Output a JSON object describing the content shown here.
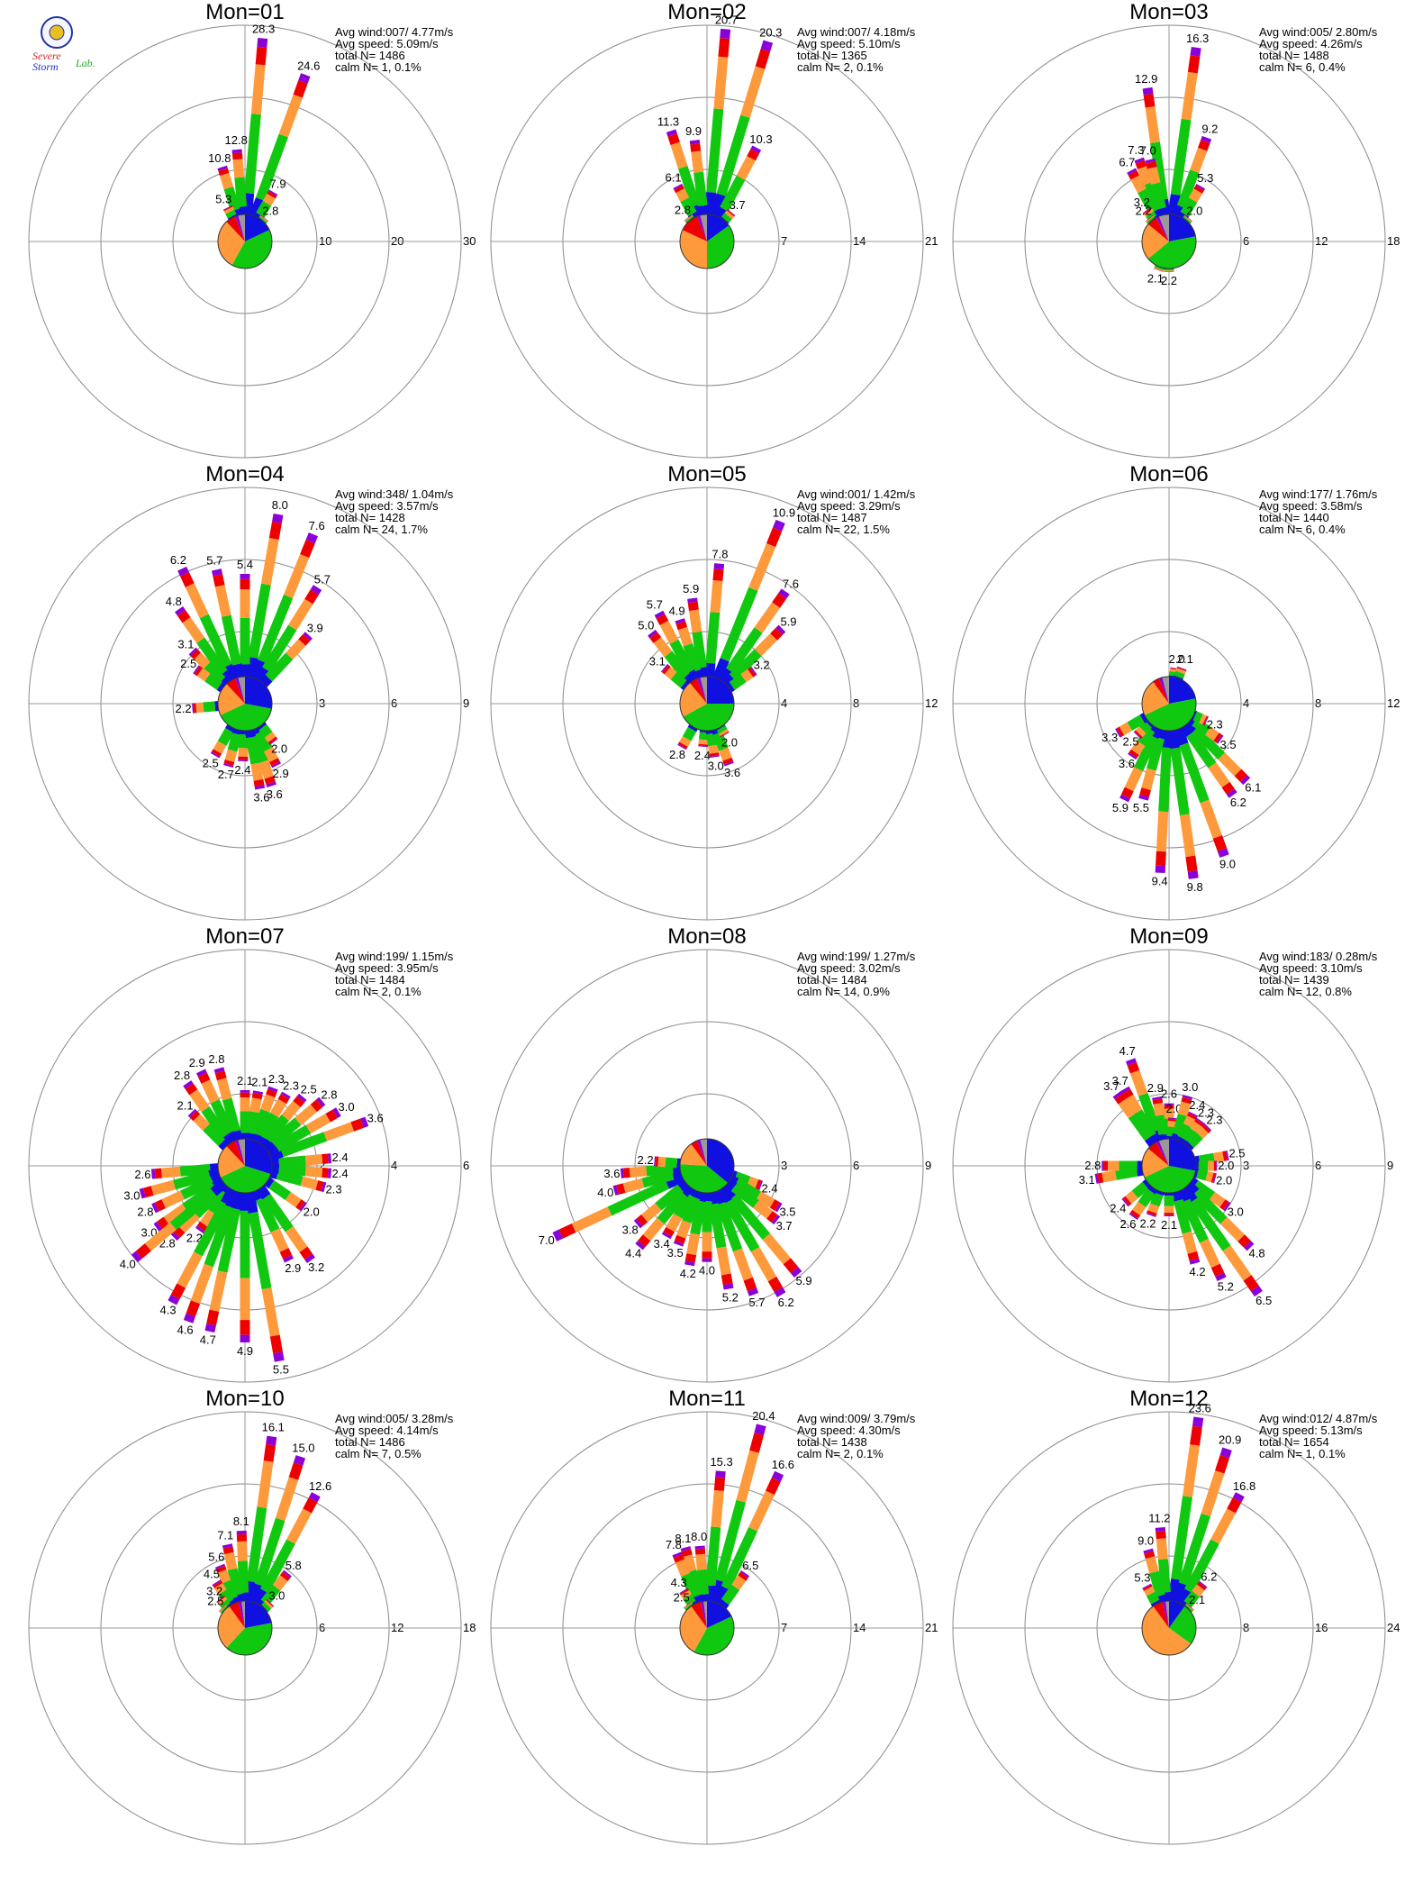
{
  "logo": {
    "name": "severe-storm-lab-logo",
    "text_severe": "Severe",
    "text_storm": "Storm",
    "text_lab": "Lab."
  },
  "colors": {
    "circle": "#8a8a8a",
    "axis": "#9a9a9a",
    "speed_bins": [
      "#1010e0",
      "#10c810",
      "#ff9a3c",
      "#ee0000",
      "#8c00d8"
    ],
    "pie": [
      "#1010e0",
      "#10c810",
      "#ff9a3c",
      "#ee0000",
      "#8c00d8",
      "#999999"
    ]
  },
  "chart_data": [
    {
      "type": "wind-rose",
      "title": "Mon=01",
      "stats": [
        "Avg wind:007/ 4.77m/s",
        "Avg speed: 5.09m/s",
        "total N=      1486",
        "calm N=    1,   0.1%"
      ],
      "rings": [
        10,
        20,
        30
      ],
      "tick_labels": [
        "10",
        "20",
        "30"
      ],
      "petals": [
        {
          "dir": 5,
          "value": 28.3
        },
        {
          "dir": 20,
          "value": 24.6
        },
        {
          "dir": -5,
          "value": 12.8
        },
        {
          "dir": -17,
          "value": 10.8
        },
        {
          "dir": -27,
          "value": 5.3
        },
        {
          "dir": 30,
          "value": 7.9
        },
        {
          "dir": 40,
          "value": 2.8
        }
      ],
      "pie": [
        18,
        40,
        30,
        6,
        2,
        4
      ]
    },
    {
      "type": "wind-rose",
      "title": "Mon=02",
      "stats": [
        "Avg wind:007/ 4.18m/s",
        "Avg speed: 5.10m/s",
        "total N=      1365",
        "calm N=    2,   0.1%"
      ],
      "rings": [
        7,
        14,
        21
      ],
      "tick_labels": [
        "7",
        "14",
        "21"
      ],
      "petals": [
        {
          "dir": 5,
          "value": 20.7
        },
        {
          "dir": 17,
          "value": 20.3
        },
        {
          "dir": 28,
          "value": 10.3
        },
        {
          "dir": -18,
          "value": 11.3
        },
        {
          "dir": -7,
          "value": 9.9
        },
        {
          "dir": -28,
          "value": 6.1
        },
        {
          "dir": -38,
          "value": 2.8
        },
        {
          "dir": 40,
          "value": 3.7
        }
      ],
      "pie": [
        15,
        35,
        32,
        12,
        2,
        4
      ]
    },
    {
      "type": "wind-rose",
      "title": "Mon=03",
      "stats": [
        "Avg wind:005/ 2.80m/s",
        "Avg speed: 4.26m/s",
        "total N=      1488",
        "calm N=    6,   0.4%"
      ],
      "rings": [
        6,
        12,
        18
      ],
      "tick_labels": [
        "6",
        "12",
        "18"
      ],
      "petals": [
        {
          "dir": 8,
          "value": 16.3
        },
        {
          "dir": -8,
          "value": 12.9
        },
        {
          "dir": -20,
          "value": 7.3
        },
        {
          "dir": -13,
          "value": 7.0
        },
        {
          "dir": -28,
          "value": 6.7
        },
        {
          "dir": 20,
          "value": 9.2
        },
        {
          "dir": 30,
          "value": 5.3
        },
        {
          "dir": 40,
          "value": 2.0
        },
        {
          "dir": -35,
          "value": 3.2
        },
        {
          "dir": -40,
          "value": 2.2
        },
        {
          "dir": 200,
          "value": 2.1
        },
        {
          "dir": 180,
          "value": 2.2
        }
      ],
      "pie": [
        22,
        42,
        22,
        6,
        2,
        6
      ]
    },
    {
      "type": "wind-rose",
      "title": "Mon=04",
      "stats": [
        "Avg wind:348/ 1.04m/s",
        "Avg speed: 3.57m/s",
        "total N=      1428",
        "calm N=   24,   1.7%"
      ],
      "rings": [
        3,
        6,
        9
      ],
      "tick_labels": [
        "3",
        "6",
        "9"
      ],
      "petals": [
        {
          "dir": 10,
          "value": 8.0
        },
        {
          "dir": 22,
          "value": 7.6
        },
        {
          "dir": 32,
          "value": 5.7
        },
        {
          "dir": 43,
          "value": 3.9
        },
        {
          "dir": 0,
          "value": 5.4
        },
        {
          "dir": -12,
          "value": 5.7
        },
        {
          "dir": -25,
          "value": 6.2
        },
        {
          "dir": -35,
          "value": 4.8
        },
        {
          "dir": -45,
          "value": 3.1
        },
        {
          "dir": -55,
          "value": 2.5
        },
        {
          "dir": -95,
          "value": 2.2
        },
        {
          "dir": 210,
          "value": 2.5
        },
        {
          "dir": 195,
          "value": 2.7
        },
        {
          "dir": 182,
          "value": 2.4
        },
        {
          "dir": 170,
          "value": 3.6
        },
        {
          "dir": 162,
          "value": 3.6
        },
        {
          "dir": 153,
          "value": 2.9
        },
        {
          "dir": 143,
          "value": 2.0
        }
      ],
      "pie": [
        28,
        40,
        20,
        6,
        2,
        4
      ]
    },
    {
      "type": "wind-rose",
      "title": "Mon=05",
      "stats": [
        "Avg wind:001/ 1.42m/s",
        "Avg speed: 3.29m/s",
        "total N=      1487",
        "calm N=   22,   1.5%"
      ],
      "rings": [
        4,
        8,
        12
      ],
      "tick_labels": [
        "4",
        "8",
        "12"
      ],
      "petals": [
        {
          "dir": 22,
          "value": 10.9
        },
        {
          "dir": 35,
          "value": 7.6
        },
        {
          "dir": 45,
          "value": 5.9
        },
        {
          "dir": 55,
          "value": 3.2
        },
        {
          "dir": 5,
          "value": 7.8
        },
        {
          "dir": -8,
          "value": 5.9
        },
        {
          "dir": -18,
          "value": 4.9
        },
        {
          "dir": -28,
          "value": 5.7
        },
        {
          "dir": -38,
          "value": 5.0
        },
        {
          "dir": -50,
          "value": 3.1
        },
        {
          "dir": 210,
          "value": 2.8
        },
        {
          "dir": 185,
          "value": 2.4
        },
        {
          "dir": 172,
          "value": 3.0
        },
        {
          "dir": 160,
          "value": 3.6
        },
        {
          "dir": 150,
          "value": 2.0
        }
      ],
      "pie": [
        25,
        42,
        22,
        5,
        2,
        4
      ]
    },
    {
      "type": "wind-rose",
      "title": "Mon=06",
      "stats": [
        "Avg wind:177/ 1.76m/s",
        "Avg speed: 3.58m/s",
        "total N=      1440",
        "calm N=    6,   0.4%"
      ],
      "rings": [
        4,
        8,
        12
      ],
      "tick_labels": [
        "4",
        "8",
        "12"
      ],
      "petals": [
        {
          "dir": 183,
          "value": 9.4
        },
        {
          "dir": 172,
          "value": 9.8
        },
        {
          "dir": 160,
          "value": 9.0
        },
        {
          "dir": 145,
          "value": 6.2
        },
        {
          "dir": 135,
          "value": 6.1
        },
        {
          "dir": 125,
          "value": 3.5
        },
        {
          "dir": 115,
          "value": 2.3
        },
        {
          "dir": 195,
          "value": 5.5
        },
        {
          "dir": 205,
          "value": 5.9
        },
        {
          "dir": 215,
          "value": 3.6
        },
        {
          "dir": 225,
          "value": 2.5
        },
        {
          "dir": 240,
          "value": 3.3
        },
        {
          "dir": 10,
          "value": 2.0
        },
        {
          "dir": 20,
          "value": 2.1
        }
      ],
      "pie": [
        22,
        46,
        22,
        4,
        2,
        4
      ]
    },
    {
      "type": "wind-rose",
      "title": "Mon=07",
      "stats": [
        "Avg wind:199/ 1.15m/s",
        "Avg speed: 3.95m/s",
        "total N=      1484",
        "calm N=    2,   0.1%"
      ],
      "rings": [
        2,
        4,
        6
      ],
      "tick_labels": [
        "2",
        "4",
        "6"
      ],
      "petals": [
        {
          "dir": 192,
          "value": 4.7
        },
        {
          "dir": 180,
          "value": 4.9
        },
        {
          "dir": 170,
          "value": 5.5
        },
        {
          "dir": 155,
          "value": 2.9
        },
        {
          "dir": 145,
          "value": 3.2
        },
        {
          "dir": 125,
          "value": 2.0
        },
        {
          "dir": 105,
          "value": 2.3
        },
        {
          "dir": 95,
          "value": 2.4
        },
        {
          "dir": 85,
          "value": 2.4
        },
        {
          "dir": 70,
          "value": 3.6
        },
        {
          "dir": 60,
          "value": 3.0
        },
        {
          "dir": 50,
          "value": 2.8
        },
        {
          "dir": 40,
          "value": 2.5
        },
        {
          "dir": 30,
          "value": 2.3
        },
        {
          "dir": 20,
          "value": 2.3
        },
        {
          "dir": 10,
          "value": 2.1
        },
        {
          "dir": 0,
          "value": 2.1
        },
        {
          "dir": -15,
          "value": 2.8
        },
        {
          "dir": -25,
          "value": 2.9
        },
        {
          "dir": -35,
          "value": 2.8
        },
        {
          "dir": -45,
          "value": 2.1
        },
        {
          "dir": 265,
          "value": 2.6
        },
        {
          "dir": 255,
          "value": 3.0
        },
        {
          "dir": 245,
          "value": 2.8
        },
        {
          "dir": 235,
          "value": 3.0
        },
        {
          "dir": 225,
          "value": 2.8
        },
        {
          "dir": 215,
          "value": 2.2
        },
        {
          "dir": 208,
          "value": 4.3
        },
        {
          "dir": 200,
          "value": 4.6
        },
        {
          "dir": 230,
          "value": 4.0
        }
      ],
      "pie": [
        30,
        38,
        20,
        6,
        2,
        4
      ]
    },
    {
      "type": "wind-rose",
      "title": "Mon=08",
      "stats": [
        "Avg wind:199/ 1.27m/s",
        "Avg speed: 3.02m/s",
        "total N=      1484",
        "calm N=   14,   0.9%"
      ],
      "rings": [
        3,
        6,
        9
      ],
      "tick_labels": [
        "3",
        "6",
        "9"
      ],
      "petals": [
        {
          "dir": 245,
          "value": 7.0
        },
        {
          "dir": 140,
          "value": 5.9
        },
        {
          "dir": 150,
          "value": 6.2
        },
        {
          "dir": 160,
          "value": 5.7
        },
        {
          "dir": 170,
          "value": 5.2
        },
        {
          "dir": 180,
          "value": 4.0
        },
        {
          "dir": 190,
          "value": 4.2
        },
        {
          "dir": 200,
          "value": 3.5
        },
        {
          "dir": 210,
          "value": 3.4
        },
        {
          "dir": 220,
          "value": 4.4
        },
        {
          "dir": 230,
          "value": 3.8
        },
        {
          "dir": 255,
          "value": 4.0
        },
        {
          "dir": 265,
          "value": 3.6
        },
        {
          "dir": 275,
          "value": 2.2
        },
        {
          "dir": 110,
          "value": 2.4
        },
        {
          "dir": 120,
          "value": 3.5
        },
        {
          "dir": 128,
          "value": 3.7
        }
      ],
      "pie": [
        36,
        40,
        14,
        4,
        2,
        4
      ]
    },
    {
      "type": "wind-rose",
      "title": "Mon=09",
      "stats": [
        "Avg wind:183/ 0.28m/s",
        "Avg speed: 3.10m/s",
        "total N=      1439",
        "calm N=   12,   0.8%"
      ],
      "rings": [
        3,
        6,
        9
      ],
      "tick_labels": [
        "3",
        "6",
        "9"
      ],
      "petals": [
        {
          "dir": -20,
          "value": 4.7
        },
        {
          "dir": -30,
          "value": 3.7
        },
        {
          "dir": -36,
          "value": 3.7
        },
        {
          "dir": -10,
          "value": 2.9
        },
        {
          "dir": 0,
          "value": 2.6
        },
        {
          "dir": 5,
          "value": 2.0
        },
        {
          "dir": 15,
          "value": 3.0
        },
        {
          "dir": 25,
          "value": 2.4
        },
        {
          "dir": 35,
          "value": 2.3
        },
        {
          "dir": 45,
          "value": 2.3
        },
        {
          "dir": 80,
          "value": 2.5
        },
        {
          "dir": 90,
          "value": 2.0
        },
        {
          "dir": 105,
          "value": 2.0
        },
        {
          "dir": 125,
          "value": 3.0
        },
        {
          "dir": 135,
          "value": 4.8
        },
        {
          "dir": 145,
          "value": 6.5
        },
        {
          "dir": 155,
          "value": 5.2
        },
        {
          "dir": 165,
          "value": 4.2
        },
        {
          "dir": 180,
          "value": 2.1
        },
        {
          "dir": 200,
          "value": 2.2
        },
        {
          "dir": 215,
          "value": 2.6
        },
        {
          "dir": 230,
          "value": 2.4
        },
        {
          "dir": -100,
          "value": 3.1
        },
        {
          "dir": -90,
          "value": 2.8
        }
      ],
      "pie": [
        28,
        40,
        18,
        6,
        2,
        6
      ]
    },
    {
      "type": "wind-rose",
      "title": "Mon=10",
      "stats": [
        "Avg wind:005/ 3.28m/s",
        "Avg speed: 4.14m/s",
        "total N=      1486",
        "calm N=    7,   0.5%"
      ],
      "rings": [
        6,
        12,
        18
      ],
      "tick_labels": [
        "6",
        "12",
        "18"
      ],
      "petals": [
        {
          "dir": 8,
          "value": 16.1
        },
        {
          "dir": 18,
          "value": 15.0
        },
        {
          "dir": 28,
          "value": 12.6
        },
        {
          "dir": 38,
          "value": 5.8
        },
        {
          "dir": 45,
          "value": 3.0
        },
        {
          "dir": -2,
          "value": 8.1
        },
        {
          "dir": -12,
          "value": 7.1
        },
        {
          "dir": -22,
          "value": 5.6
        },
        {
          "dir": -32,
          "value": 4.5
        },
        {
          "dir": -40,
          "value": 3.2
        },
        {
          "dir": -48,
          "value": 2.5
        }
      ],
      "pie": [
        22,
        40,
        28,
        6,
        2,
        2
      ]
    },
    {
      "type": "wind-rose",
      "title": "Mon=11",
      "stats": [
        "Avg wind:009/ 3.79m/s",
        "Avg speed: 4.30m/s",
        "total N=      1438",
        "calm N=    2,   0.1%"
      ],
      "rings": [
        7,
        14,
        21
      ],
      "tick_labels": [
        "7",
        "14",
        "21"
      ],
      "petals": [
        {
          "dir": 15,
          "value": 20.4
        },
        {
          "dir": 25,
          "value": 16.6
        },
        {
          "dir": 35,
          "value": 6.5
        },
        {
          "dir": 5,
          "value": 15.3
        },
        {
          "dir": -5,
          "value": 8.0
        },
        {
          "dir": -15,
          "value": 8.1
        },
        {
          "dir": -22,
          "value": 7.8
        },
        {
          "dir": -32,
          "value": 4.3
        },
        {
          "dir": -40,
          "value": 2.5
        }
      ],
      "pie": [
        18,
        40,
        32,
        6,
        2,
        2
      ]
    },
    {
      "type": "wind-rose",
      "title": "Mon=12",
      "stats": [
        "Avg wind:012/ 4.87m/s",
        "Avg speed: 5.13m/s",
        "total N=      1654",
        "calm N=    1,   0.1%"
      ],
      "rings": [
        8,
        16,
        24
      ],
      "tick_labels": [
        "8",
        "16",
        "24"
      ],
      "petals": [
        {
          "dir": 8,
          "value": 23.6
        },
        {
          "dir": 18,
          "value": 20.9
        },
        {
          "dir": 28,
          "value": 16.8
        },
        {
          "dir": 38,
          "value": 6.2
        },
        {
          "dir": 45,
          "value": 2.1
        },
        {
          "dir": -5,
          "value": 11.2
        },
        {
          "dir": -15,
          "value": 9.0
        },
        {
          "dir": -28,
          "value": 5.3
        }
      ],
      "pie": [
        10,
        25,
        55,
        6,
        2,
        2
      ]
    }
  ]
}
